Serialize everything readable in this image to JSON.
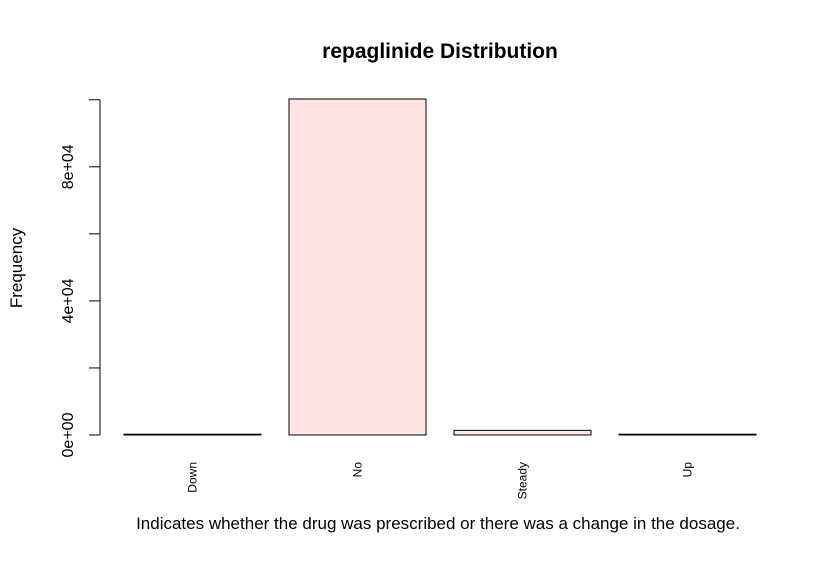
{
  "chart_data": {
    "type": "bar",
    "title": "repaglinide Distribution",
    "xlabel": "Indicates whether the drug was prescribed or there was a change in the dosage.",
    "ylabel": "Frequency",
    "categories": [
      "Down",
      "No",
      "Steady",
      "Up"
    ],
    "values": [
      45,
      100227,
      1384,
      110
    ],
    "ylim": [
      0,
      100227
    ],
    "yticks": [
      0,
      20000,
      40000,
      60000,
      80000,
      100000
    ],
    "ytick_labels": [
      "0e+00",
      "",
      "4e+04",
      "",
      "8e+04",
      ""
    ],
    "bar_fill": "#FFE4E1",
    "bar_stroke": "#000000",
    "grid": false,
    "legend": "none"
  }
}
